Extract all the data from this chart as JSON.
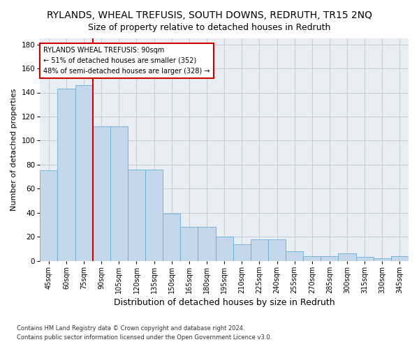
{
  "title": "RYLANDS, WHEAL TREFUSIS, SOUTH DOWNS, REDRUTH, TR15 2NQ",
  "subtitle": "Size of property relative to detached houses in Redruth",
  "xlabel": "Distribution of detached houses by size in Redruth",
  "ylabel": "Number of detached properties",
  "categories": [
    "45sqm",
    "60sqm",
    "75sqm",
    "90sqm",
    "105sqm",
    "120sqm",
    "135sqm",
    "150sqm",
    "165sqm",
    "180sqm",
    "195sqm",
    "210sqm",
    "225sqm",
    "240sqm",
    "255sqm",
    "270sqm",
    "285sqm",
    "300sqm",
    "315sqm",
    "330sqm",
    "345sqm"
  ],
  "values": [
    75,
    143,
    146,
    112,
    112,
    76,
    76,
    39,
    28,
    28,
    20,
    14,
    18,
    18,
    8,
    4,
    4,
    6,
    3,
    2,
    4
  ],
  "bar_color": "#c5d8eb",
  "bar_edge_color": "#6aadd5",
  "ylim": [
    0,
    185
  ],
  "yticks": [
    0,
    20,
    40,
    60,
    80,
    100,
    120,
    140,
    160,
    180
  ],
  "annotation_title": "RYLANDS WHEAL TREFUSIS: 90sqm",
  "annotation_line1": "← 51% of detached houses are smaller (352)",
  "annotation_line2": "48% of semi-detached houses are larger (328) →",
  "annotation_box_color": "#ffffff",
  "annotation_box_edge": "#cc0000",
  "vline_color": "#cc0000",
  "background_color": "#e8eef4",
  "footer": "Contains HM Land Registry data © Crown copyright and database right 2024.\nContains public sector information licensed under the Open Government Licence v3.0.",
  "title_fontsize": 10,
  "ylabel_fontsize": 8,
  "xlabel_fontsize": 9,
  "tick_fontsize": 7
}
